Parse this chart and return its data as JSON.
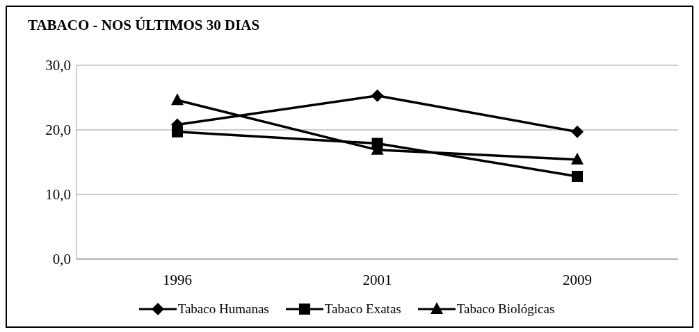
{
  "chart_data": {
    "type": "line",
    "title": "TABACO - NOS ÚLTIMOS 30 DIAS",
    "categories": [
      "1996",
      "2001",
      "2009"
    ],
    "series": [
      {
        "name": "Tabaco Humanas",
        "color": "#000000",
        "marker": "diamond",
        "values": [
          20.8,
          25.3,
          19.7
        ]
      },
      {
        "name": "Tabaco Exatas",
        "color": "#000000",
        "marker": "square",
        "values": [
          19.7,
          17.9,
          12.8
        ]
      },
      {
        "name": "Tabaco Biológicas",
        "color": "#000000",
        "marker": "triangle",
        "values": [
          24.6,
          16.9,
          15.4
        ]
      }
    ],
    "ylim": [
      0,
      30
    ],
    "yticks": [
      {
        "value": 0,
        "label": "0,0"
      },
      {
        "value": 10,
        "label": "10,0"
      },
      {
        "value": 20,
        "label": "20,0"
      },
      {
        "value": 30,
        "label": "30,0"
      }
    ],
    "grid": "y",
    "legend": "bottom",
    "line_style": "solid"
  }
}
